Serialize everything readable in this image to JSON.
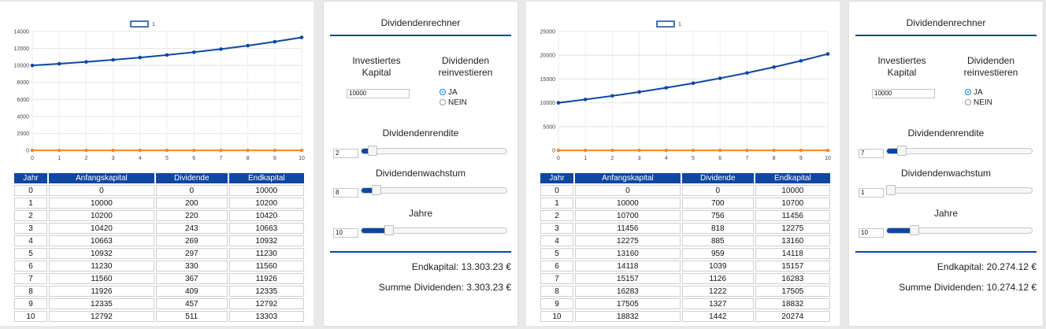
{
  "colors": {
    "accent": "#0d47a1",
    "series_main": "#0d47a1",
    "series_dividend": "#ff8a1f"
  },
  "left": {
    "chart_data": {
      "type": "line",
      "legend": "1",
      "x": [
        0,
        1,
        2,
        3,
        4,
        5,
        6,
        7,
        8,
        9,
        10
      ],
      "xticks": [
        "0",
        "1",
        "2",
        "3",
        "4",
        "5",
        "6",
        "7",
        "8",
        "9",
        "10"
      ],
      "yticks": [
        "0",
        "2000",
        "4000",
        "6000",
        "8000",
        "10000",
        "12000",
        "14000"
      ],
      "ylim": [
        0,
        14000
      ],
      "series": [
        {
          "values": [
            10000,
            10200,
            10420,
            10663,
            10932,
            11230,
            11560,
            11926,
            12335,
            12792,
            13303
          ],
          "color": "#0d47a1"
        },
        {
          "values": [
            0,
            0,
            0,
            0,
            0,
            0,
            0,
            0,
            0,
            0,
            0
          ],
          "color": "#ff8a1f"
        }
      ]
    },
    "table": {
      "headers": [
        "Jahr",
        "Anfangskapital",
        "Dividende",
        "Endkapital"
      ],
      "rows": [
        [
          "0",
          "0",
          "0",
          "10000"
        ],
        [
          "1",
          "10000",
          "200",
          "10200"
        ],
        [
          "2",
          "10200",
          "220",
          "10420"
        ],
        [
          "3",
          "10420",
          "243",
          "10663"
        ],
        [
          "4",
          "10663",
          "269",
          "10932"
        ],
        [
          "5",
          "10932",
          "297",
          "11230"
        ],
        [
          "6",
          "11230",
          "330",
          "11560"
        ],
        [
          "7",
          "11560",
          "367",
          "11926"
        ],
        [
          "8",
          "11926",
          "409",
          "12335"
        ],
        [
          "9",
          "12335",
          "457",
          "12792"
        ],
        [
          "10",
          "12792",
          "511",
          "13303"
        ]
      ]
    },
    "calc": {
      "title": "Dividendenrechner",
      "kapital_label": "Investiertes Kapital",
      "kapital_value": "10000",
      "reinvest_label": "Dividenden reinvestieren",
      "radio_ja": "JA",
      "radio_nein": "NEIN",
      "reinvest_selected": "JA",
      "rendite_label": "Dividendenrendite",
      "rendite_value": "2",
      "rendite_slider": 0.05,
      "wachstum_label": "Dividendenwachstum",
      "wachstum_value": "8",
      "wachstum_slider": 0.08,
      "jahre_label": "Jahre",
      "jahre_value": "10",
      "jahre_slider": 0.17,
      "endkapital": "Endkapital: 13.303.23 €",
      "summe": "Summe Dividenden: 3.303.23 €"
    }
  },
  "right": {
    "chart_data": {
      "type": "line",
      "legend": "1",
      "x": [
        0,
        1,
        2,
        3,
        4,
        5,
        6,
        7,
        8,
        9,
        10
      ],
      "xticks": [
        "0",
        "1",
        "2",
        "3",
        "4",
        "5",
        "6",
        "7",
        "8",
        "9",
        "10"
      ],
      "yticks": [
        "0",
        "5000",
        "10000",
        "15000",
        "20000",
        "25000"
      ],
      "ylim": [
        0,
        25000
      ],
      "series": [
        {
          "values": [
            10000,
            10700,
            11456,
            12275,
            13160,
            14118,
            15157,
            16283,
            17505,
            18832,
            20274
          ],
          "color": "#0d47a1"
        },
        {
          "values": [
            0,
            0,
            0,
            0,
            0,
            0,
            0,
            0,
            0,
            0,
            0
          ],
          "color": "#ff8a1f"
        }
      ]
    },
    "table": {
      "headers": [
        "Jahr",
        "Anfangskapital",
        "Dividende",
        "Endkapital"
      ],
      "rows": [
        [
          "0",
          "0",
          "0",
          "10000"
        ],
        [
          "1",
          "10000",
          "700",
          "10700"
        ],
        [
          "2",
          "10700",
          "756",
          "11456"
        ],
        [
          "3",
          "11456",
          "818",
          "12275"
        ],
        [
          "4",
          "12275",
          "885",
          "13160"
        ],
        [
          "5",
          "13160",
          "959",
          "14118"
        ],
        [
          "6",
          "14118",
          "1039",
          "15157"
        ],
        [
          "7",
          "15157",
          "1126",
          "16283"
        ],
        [
          "8",
          "16283",
          "1222",
          "17505"
        ],
        [
          "9",
          "17505",
          "1327",
          "18832"
        ],
        [
          "10",
          "18832",
          "1442",
          "20274"
        ]
      ]
    },
    "calc": {
      "title": "Dividendenrechner",
      "kapital_label": "Investiertes Kapital",
      "kapital_value": "10000",
      "reinvest_label": "Dividenden reinvestieren",
      "radio_ja": "JA",
      "radio_nein": "NEIN",
      "reinvest_selected": "JA",
      "rendite_label": "Dividendenrendite",
      "rendite_value": "7",
      "rendite_slider": 0.08,
      "wachstum_label": "Dividendenwachstum",
      "wachstum_value": "1",
      "wachstum_slider": 0.0,
      "jahre_label": "Jahre",
      "jahre_value": "10",
      "jahre_slider": 0.17,
      "endkapital": "Endkapital: 20.274.12 €",
      "summe": "Summe Dividenden: 10.274.12 €"
    }
  }
}
